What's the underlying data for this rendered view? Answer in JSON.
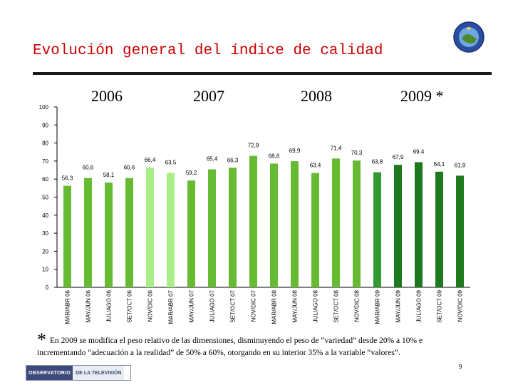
{
  "slide": {
    "title": "Evolución general del índice de calidad",
    "years": [
      "2006",
      "2007",
      "2008",
      "2009"
    ],
    "year_2009_marker": "*",
    "footnote_marker": "*",
    "footnote_line1": "En 2009 se modifica el peso relativo de las dimensiones, disminuyendo el peso de “variedad” desde 20% a 10% e",
    "footnote_line2": "incrementando “adecuación a la realidad” de 50% a 60%, otorgando en su interior 35% a la variable “valores”.",
    "footer_logo_left": "OBSERVATORIO",
    "footer_logo_right": "DE LA TELEVISIÓN",
    "page_number": "9"
  },
  "chart_data": {
    "type": "bar",
    "categories": [
      "MAR/ABR 06",
      "MAY/JUN 06",
      "JUL/AGO 06",
      "SET/OCT 06",
      "NOV/DIC 06",
      "MAR/ABR 07",
      "MAY/JUN 07",
      "JUL/AGO 07",
      "SET/OCT 07",
      "NOV/DIC 07",
      "MAR/ABR 08",
      "MAY/JUN 08",
      "JUL/AGO 08",
      "SET/OCT 08",
      "NOV/DIC 08",
      "MAR/ABR 09",
      "MAY/JUN 09",
      "JUL/AGO 09",
      "SET/OCT 09",
      "NOV/DIC 09"
    ],
    "values": [
      56.3,
      60.6,
      58.1,
      60.6,
      66.4,
      63.5,
      59.2,
      65.4,
      66.3,
      72.9,
      68.6,
      69.9,
      63.4,
      71.4,
      70.3,
      63.8,
      67.9,
      69.4,
      64.1,
      61.9
    ],
    "value_labels": [
      "56,3",
      "60,6",
      "58,1",
      "60,6",
      "66,4",
      "63,5",
      "59,2",
      "65,4",
      "66,3",
      "72,9",
      "68,6",
      "69,9",
      "63,4",
      "71,4",
      "70,3",
      "63,8",
      "67,9",
      "69.4",
      "64,1",
      "61,9"
    ],
    "ylim": [
      0,
      100
    ],
    "yticks": [
      0,
      10,
      20,
      30,
      40,
      50,
      60,
      70,
      80,
      90,
      100
    ],
    "grid": false,
    "bar_colors": [
      "#66bb33",
      "#66bb33",
      "#66bb33",
      "#66bb33",
      "#aaee88",
      "#aaee88",
      "#66bb33",
      "#66bb33",
      "#66bb33",
      "#66bb33",
      "#66bb33",
      "#66bb33",
      "#66bb33",
      "#66bb33",
      "#66bb33",
      "#339933",
      "#1f7a1f",
      "#1f7a1f",
      "#1f7a1f",
      "#1f7a1f"
    ]
  }
}
